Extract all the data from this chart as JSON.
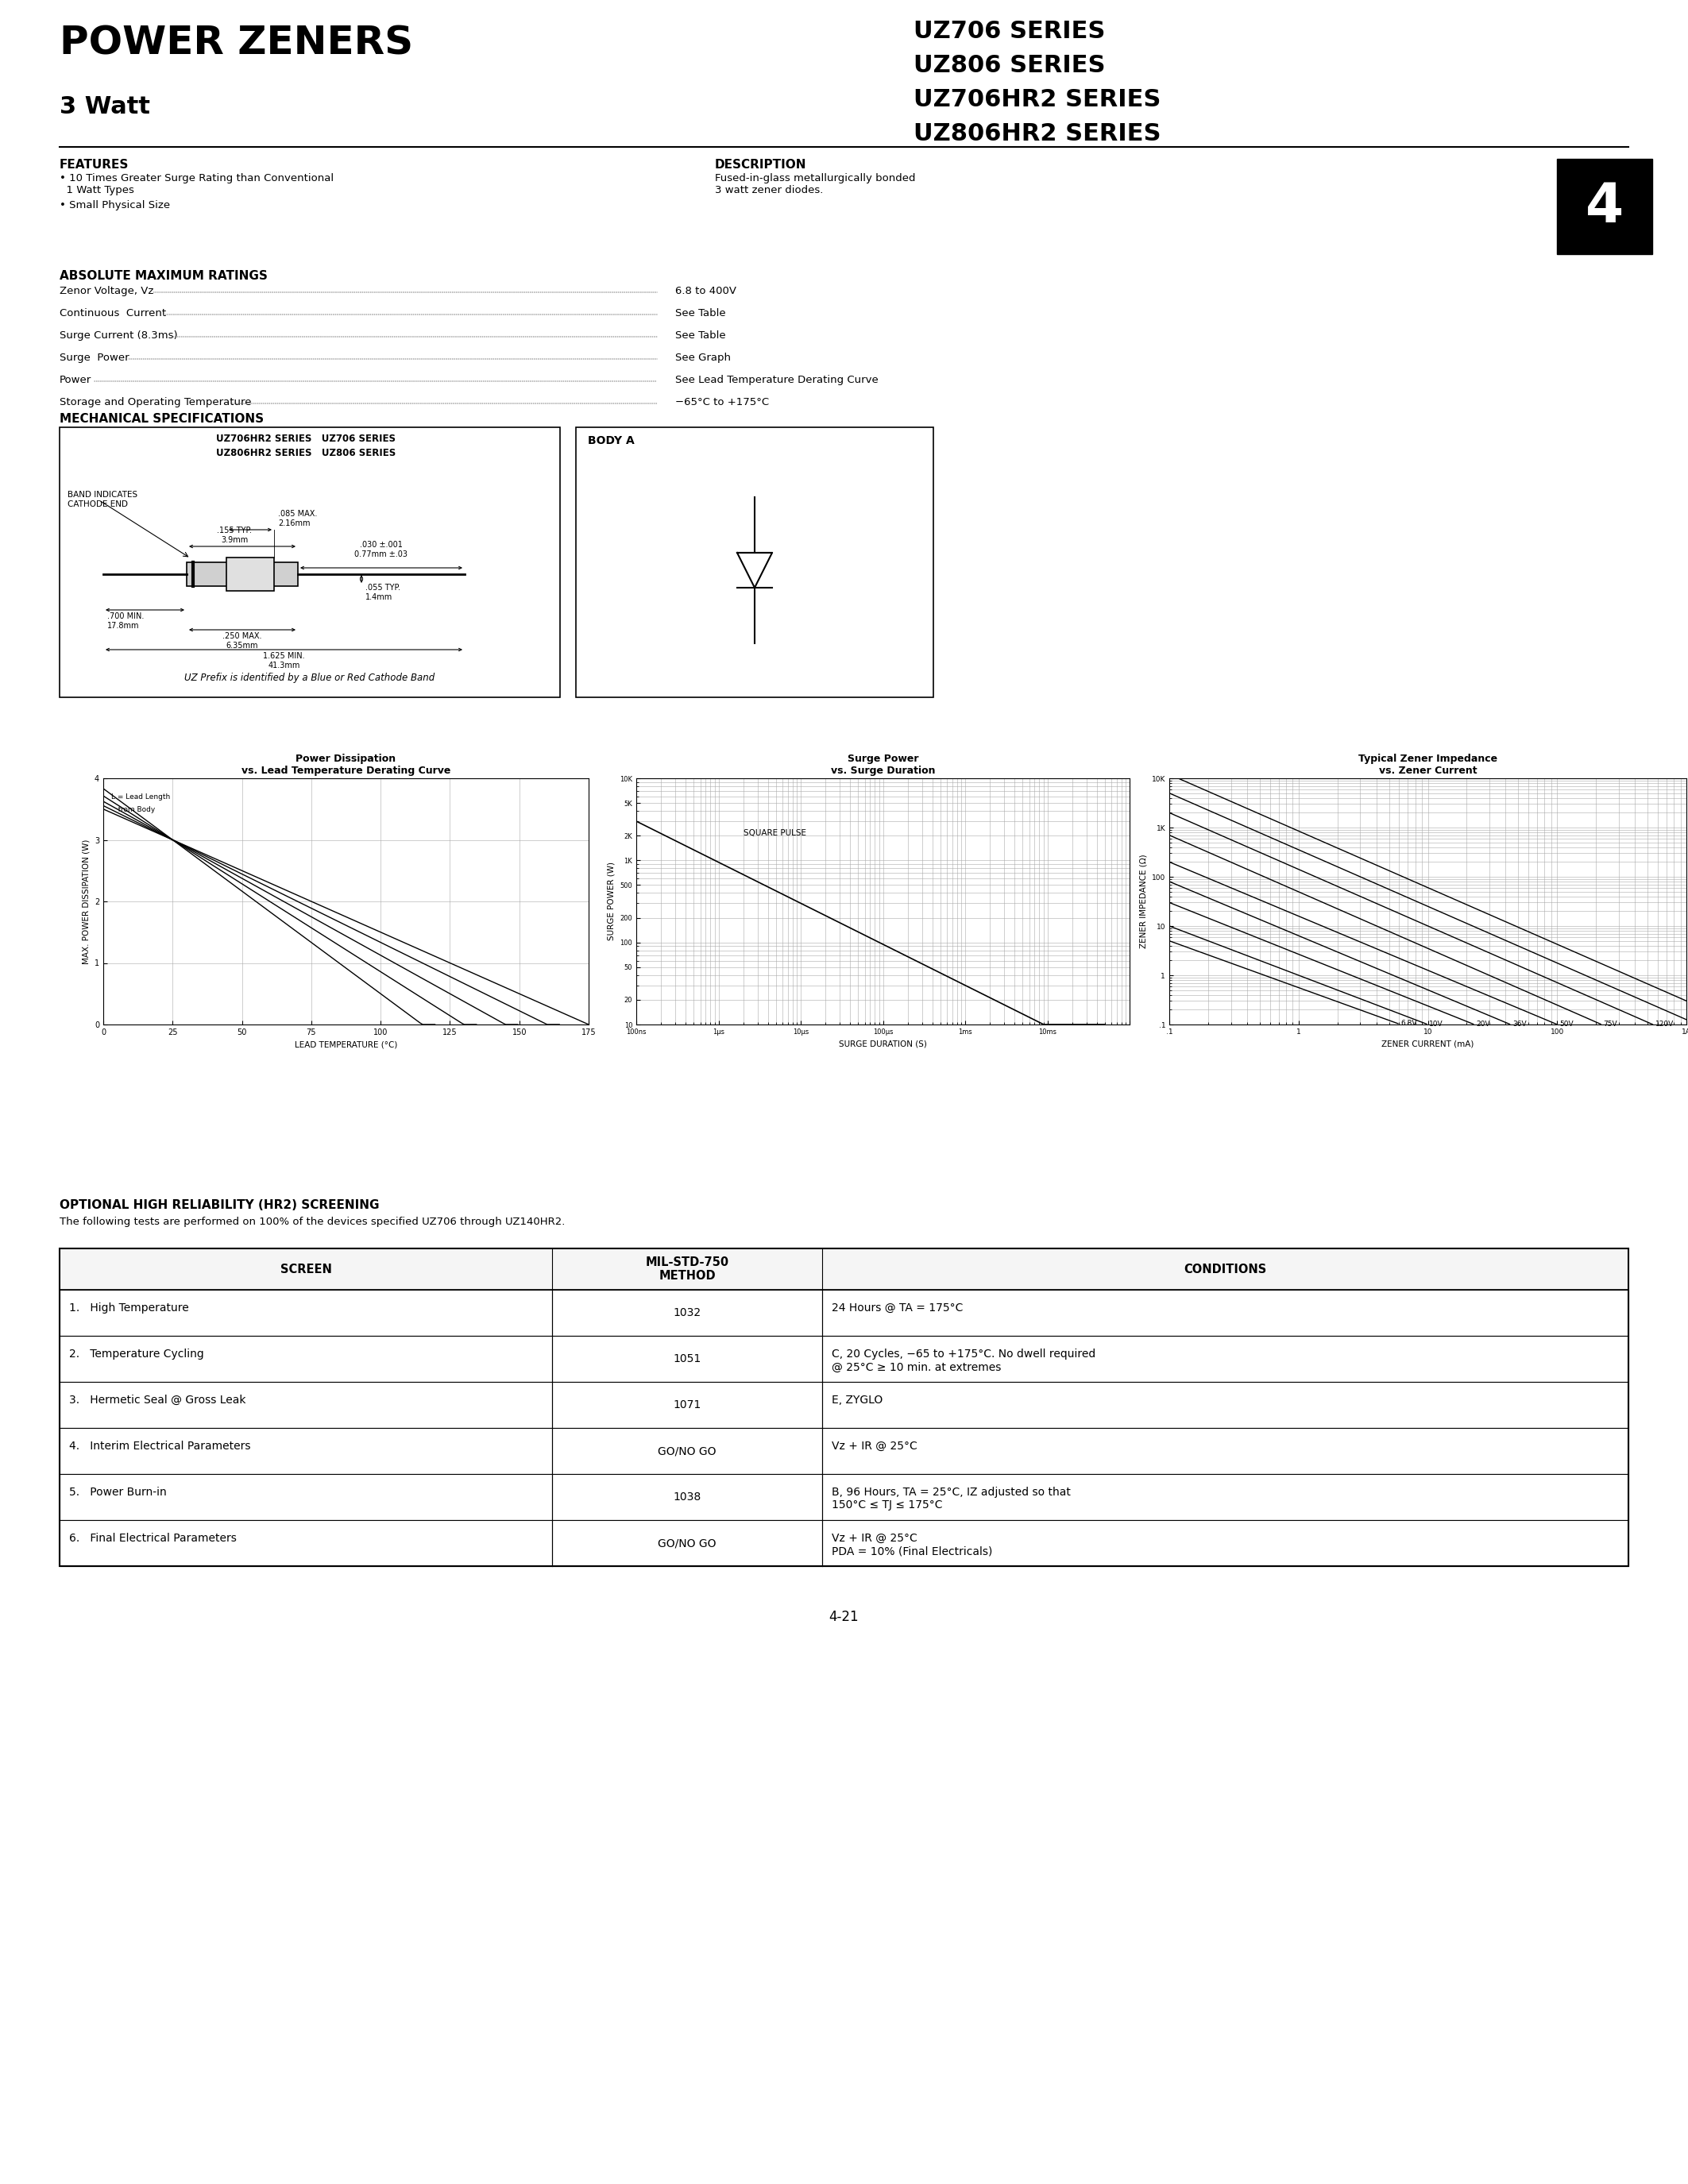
{
  "bg_color": "#ffffff",
  "title_left": "POWER ZENERS",
  "subtitle_left": "3 Watt",
  "title_right_lines": [
    "UZ706 SERIES",
    "UZ806 SERIES",
    "UZ706HR2 SERIES",
    "UZ806HR2 SERIES"
  ],
  "features_title": "FEATURES",
  "features_bullets": [
    "• 10 Times Greater Surge Rating than Conventional\n  1 Watt Types",
    "• Small Physical Size"
  ],
  "description_title": "DESCRIPTION",
  "description_text": "Fused-in-glass metallurgically bonded\n3 watt zener diodes.",
  "tab_number": "4",
  "abs_max_title": "ABSOLUTE MAXIMUM RATINGS",
  "abs_max_rows": [
    [
      "Zenor Voltage, Vz",
      "6.8 to 400V"
    ],
    [
      "Continuous  Current",
      "See Table"
    ],
    [
      "Surge Current (8.3ms)",
      "See Table"
    ],
    [
      "Surge  Power",
      "See Graph"
    ],
    [
      "Power",
      "See Lead Temperature Derating Curve"
    ],
    [
      "Storage and Operating Temperature",
      "−65°C to +175°C"
    ]
  ],
  "mech_spec_title": "MECHANICAL SPECIFICATIONS",
  "mech_diag_label1": "UZ706HR2 SERIES   UZ706 SERIES",
  "mech_diag_label2": "UZ806HR2 SERIES   UZ806 SERIES",
  "mech_diag_band": "BAND INDICATES\nCATHODE END",
  "body_a_label": "BODY A",
  "uz_prefix_note": "UZ Prefix is identified by a Blue or Red Cathode Band",
  "graph1_title": "Power Dissipation\nvs. Lead Temperature Derating Curve",
  "graph1_xlabel": "LEAD TEMPERATURE (°C)",
  "graph1_ylabel": "MAX. POWER DISSIPATION (W)",
  "graph2_title": "Surge Power\nvs. Surge Duration",
  "graph2_xlabel": "SURGE DURATION (S)",
  "graph2_ylabel": "SURGE POWER (W)",
  "graph3_title": "Typical Zener Impedance\nvs. Zener Current",
  "graph3_xlabel": "ZENER CURRENT (mA)",
  "graph3_ylabel": "ZENER IMPEDANCE (Ω)",
  "optional_title": "OPTIONAL HIGH RELIABILITY (HR2) SCREENING",
  "optional_desc": "The following tests are performed on 100% of the devices specified UZ706 through UZ140HR2.",
  "table_headers": [
    "SCREEN",
    "MIL-STD-750\nMETHOD",
    "CONDITIONS"
  ],
  "table_rows": [
    [
      "1.   High Temperature",
      "1032",
      "24 Hours @ TA = 175°C"
    ],
    [
      "2.   Temperature Cycling",
      "1051",
      "C, 20 Cycles, −65 to +175°C. No dwell required\n@ 25°C ≥ 10 min. at extremes"
    ],
    [
      "3.   Hermetic Seal @ Gross Leak",
      "1071",
      "E, ZYGLO"
    ],
    [
      "4.   Interim Electrical Parameters",
      "GO/NO GO",
      "Vz + IR @ 25°C"
    ],
    [
      "5.   Power Burn-in",
      "1038",
      "B, 96 Hours, TA = 25°C, IZ adjusted so that\n150°C ≤ TJ ≤ 175°C"
    ],
    [
      "6.   Final Electrical Parameters",
      "GO/NO GO",
      "Vz + IR @ 25°C\nPDA = 10% (Final Electricals)"
    ]
  ],
  "page_number": "4-21"
}
